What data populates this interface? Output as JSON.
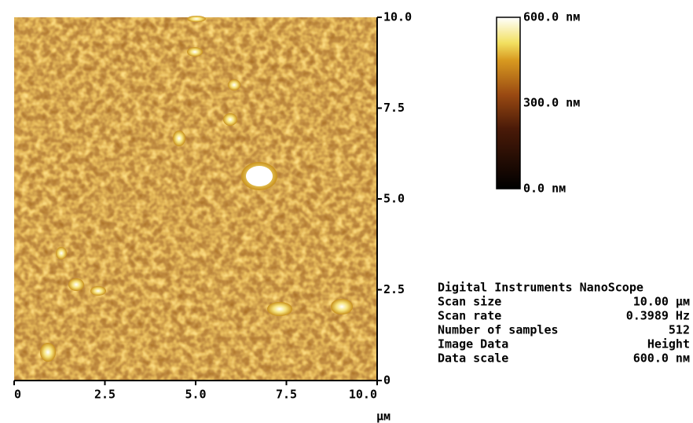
{
  "x_axis": {
    "ticks": [
      "0",
      "2.5",
      "5.0",
      "7.5",
      "10.0"
    ],
    "unit": "µм"
  },
  "y_axis": {
    "ticks": [
      "0",
      "2.5",
      "5.0",
      "7.5",
      "10.0"
    ]
  },
  "color_scale": {
    "labels": [
      "600.0 nм",
      "300.0 nм",
      "0.0 nм"
    ]
  },
  "info": {
    "title": "Digital Instruments NanoScope",
    "rows": [
      [
        "Scan size",
        "10.00 µм"
      ],
      [
        "Scan rate",
        "0.3989 Hz"
      ],
      [
        "Number of samples",
        "512"
      ],
      [
        "Image Data",
        "Height"
      ],
      [
        "Data scale",
        "600.0 nм"
      ]
    ]
  }
}
